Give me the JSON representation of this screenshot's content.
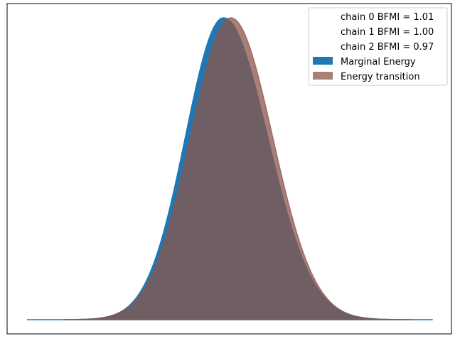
{
  "chart_data": {
    "type": "area",
    "plot": "energy",
    "xlabel": "",
    "ylabel": "",
    "x_ticks_visible": false,
    "y_ticks_visible": false,
    "grid": false,
    "legend_position": "top-right",
    "legend": {
      "chain_labels": [
        "chain  0 BFMI = 1.01",
        "chain  1 BFMI = 1.00",
        "chain  2 BFMI = 0.97"
      ],
      "marginal_label": "Marginal Energy",
      "transition_label": "Energy transition"
    },
    "series": [
      {
        "name": "Marginal Energy",
        "color": "#1f77b4",
        "opacity": 1.0,
        "x_range": [
          -3.2,
          3.4
        ],
        "density": {
          "mu": 0.0,
          "sigma": 0.62,
          "sigma_right": 0.72
        }
      },
      {
        "name": "Energy transition",
        "color": "#8c564b",
        "opacity": 0.75,
        "x_range": [
          -2.6,
          3.1
        ],
        "density": {
          "mu": 0.12,
          "sigma": 0.66,
          "sigma_right": 0.68
        }
      }
    ],
    "xlim": [
      -3.2,
      3.4
    ],
    "ylim": [
      0,
      1.05
    ]
  }
}
